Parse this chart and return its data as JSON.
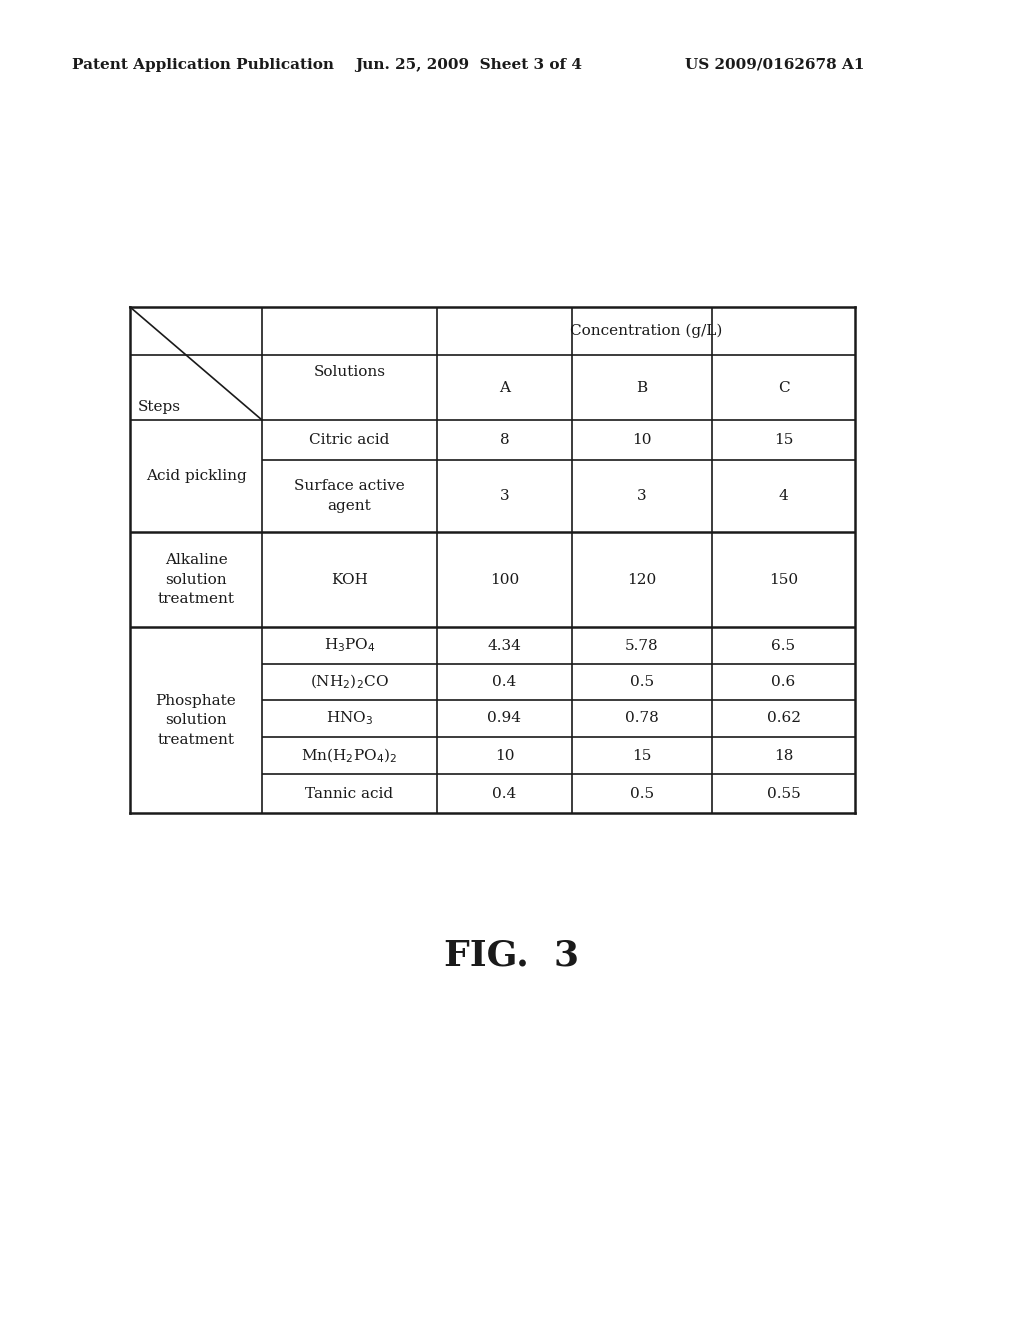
{
  "header_text": "Patent Application Publication",
  "header_date": "Jun. 25, 2009  Sheet 3 of 4",
  "header_patent": "US 2009/0162678 A1",
  "figure_label": "FIG.  3",
  "bg_color": "#ffffff",
  "text_color": "#1a1a1a",
  "line_color": "#1a1a1a",
  "font_size_header": 11,
  "font_size_table": 11,
  "font_size_figure": 26
}
